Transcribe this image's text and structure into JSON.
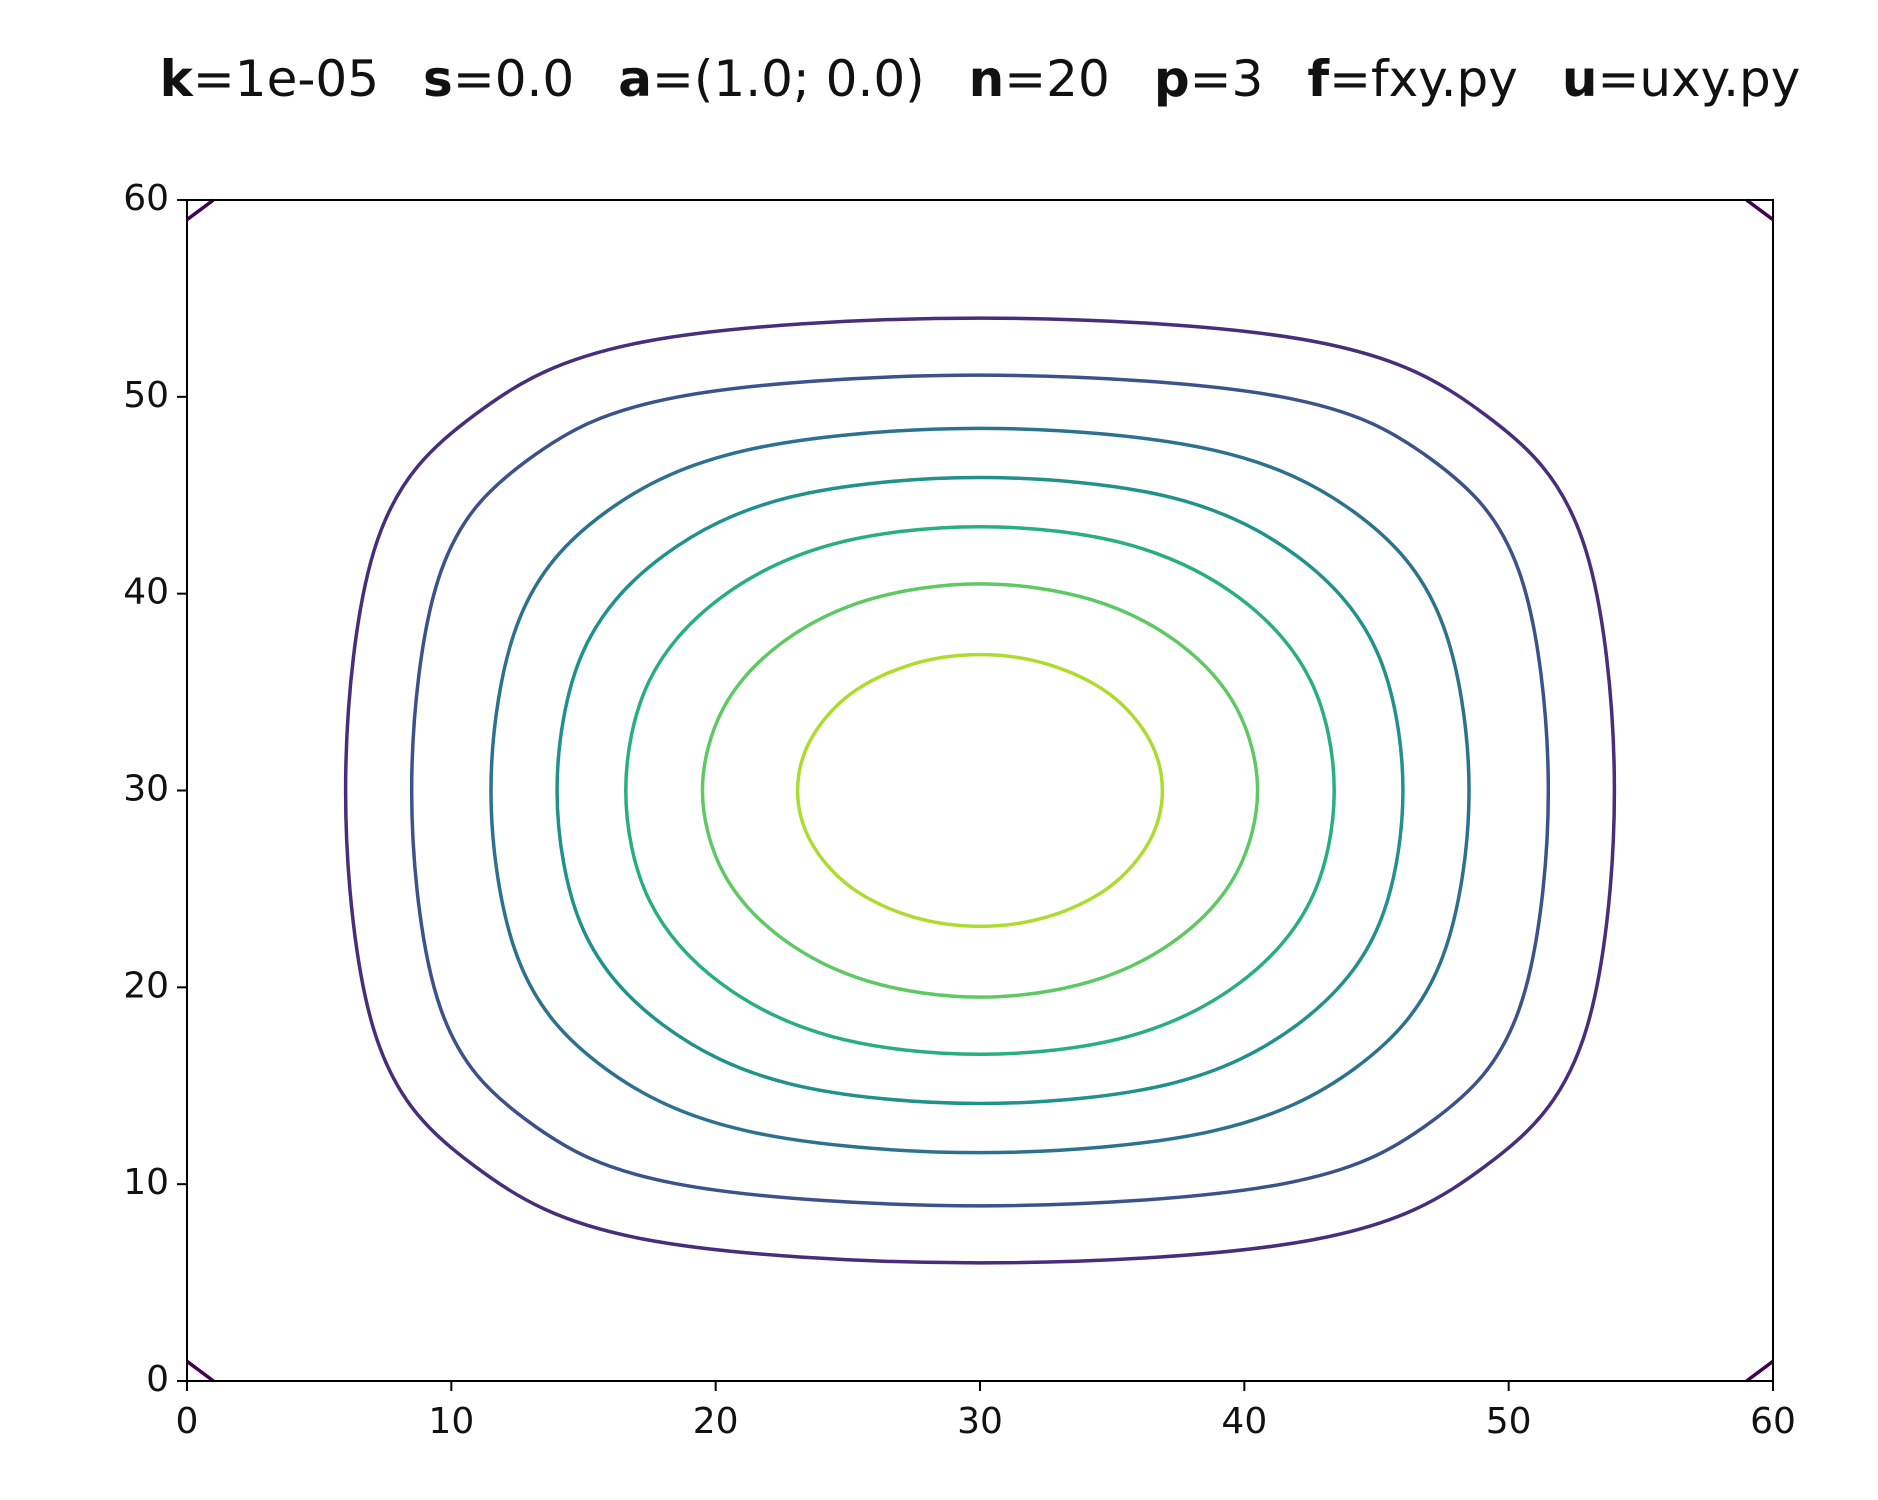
{
  "chart_data": {
    "type": "contour",
    "title_parts": [
      {
        "key": "k",
        "value": "=1e-05"
      },
      {
        "key": "s",
        "value": "=0.0"
      },
      {
        "key": "a",
        "value": "=(1.0; 0.0)"
      },
      {
        "key": "n",
        "value": "=20"
      },
      {
        "key": "p",
        "value": "=3"
      },
      {
        "key": "f",
        "value": "=fxy.py"
      },
      {
        "key": "u",
        "value": "=uxy.py"
      }
    ],
    "xlim": [
      0,
      60
    ],
    "ylim": [
      0,
      60
    ],
    "xticks": [
      0,
      10,
      20,
      30,
      40,
      50,
      60
    ],
    "yticks": [
      0,
      10,
      20,
      30,
      40,
      50,
      60
    ],
    "series": [
      {
        "color": "#440154",
        "x": [
          0,
          1,
          null,
          59,
          60,
          null,
          0,
          1,
          null,
          59,
          60
        ],
        "y": [
          1,
          0,
          null,
          0,
          1,
          null,
          59,
          60,
          null,
          60,
          59
        ]
      },
      {
        "color": "#472d7b",
        "x": [
          54,
          52.8,
          49.1,
          42.7,
          30,
          17.3,
          10.9,
          7.2,
          6,
          7.2,
          10.9,
          17.3,
          30,
          42.7,
          49.1,
          52.8
        ],
        "y": [
          30,
          42.7,
          49.1,
          52.8,
          54,
          52.8,
          49.1,
          42.7,
          30,
          17.3,
          10.9,
          7.2,
          6,
          7.2,
          10.9,
          17.3
        ]
      },
      {
        "color": "#3b528b",
        "x": [
          51.5,
          50.4,
          47.1,
          41.4,
          30,
          18.6,
          12.9,
          9.6,
          8.5,
          9.6,
          12.9,
          18.6,
          30,
          41.4,
          47.1,
          50.4
        ],
        "y": [
          30,
          41.1,
          46.8,
          50,
          51.1,
          50,
          46.8,
          41.1,
          30,
          18.9,
          13.2,
          10,
          8.9,
          10,
          13.2,
          18.9
        ]
      },
      {
        "color": "#2c728e",
        "x": [
          48.5,
          47.4,
          44.2,
          38.8,
          30,
          21.2,
          15.8,
          12.6,
          11.5,
          12.6,
          15.8,
          21.2,
          30,
          38.8,
          44.2,
          47.4
        ],
        "y": [
          30,
          38.8,
          44.1,
          47.3,
          48.4,
          47.3,
          44.1,
          38.8,
          30,
          21.2,
          15.9,
          12.7,
          11.6,
          12.7,
          15.9,
          21.2
        ]
      },
      {
        "color": "#21918c",
        "x": [
          46,
          45,
          42,
          37.2,
          30,
          22.8,
          18,
          15,
          14,
          15,
          18,
          22.8,
          30,
          37.2,
          42,
          45
        ],
        "y": [
          30,
          37.1,
          41.9,
          44.9,
          45.9,
          44.9,
          41.9,
          37.1,
          30,
          22.9,
          18.1,
          15.1,
          14.1,
          15.1,
          18.1,
          22.9
        ]
      },
      {
        "color": "#28ae80",
        "x": [
          43.4,
          42.5,
          39.8,
          35.6,
          30,
          24.4,
          20.2,
          17.5,
          16.6,
          17.5,
          20.2,
          24.4,
          30,
          35.6,
          39.8,
          42.5
        ],
        "y": [
          30,
          35.6,
          39.8,
          42.5,
          43.4,
          42.5,
          39.8,
          35.6,
          30,
          24.4,
          20.2,
          17.5,
          16.6,
          17.5,
          20.2,
          24.4
        ]
      },
      {
        "color": "#5ec962",
        "x": [
          40.5,
          39.7,
          37.5,
          34.2,
          30,
          25.8,
          22.5,
          20.3,
          19.5,
          20.3,
          22.5,
          25.8,
          30,
          34.2,
          37.5,
          39.7
        ],
        "y": [
          30,
          34.2,
          37.5,
          39.7,
          40.5,
          39.7,
          37.5,
          34.2,
          30,
          25.8,
          22.5,
          20.3,
          19.5,
          20.3,
          22.5,
          25.8
        ]
      },
      {
        "color": "#addc30",
        "x": [
          36.9,
          36.4,
          34.9,
          32.6,
          30,
          27.4,
          25.1,
          23.6,
          23.1,
          23.6,
          25.1,
          27.4,
          30,
          32.6,
          34.9,
          36.4
        ],
        "y": [
          30,
          32.6,
          34.9,
          36.4,
          36.9,
          36.4,
          34.9,
          32.6,
          30,
          27.4,
          25.1,
          23.6,
          23.1,
          23.6,
          25.1,
          27.4
        ]
      }
    ]
  }
}
